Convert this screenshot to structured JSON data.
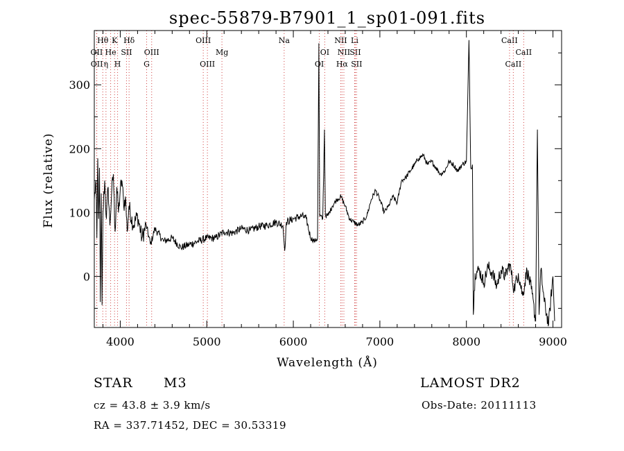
{
  "chart_data": {
    "type": "line",
    "title": "spec-55879-B7901_1_sp01-091.fits",
    "xlabel": "Wavelength (Å)",
    "ylabel": "Flux (relative)",
    "xlim": [
      3700,
      9100
    ],
    "ylim": [
      -80,
      385
    ],
    "xticks": [
      4000,
      5000,
      6000,
      7000,
      8000,
      9000
    ],
    "yticks": [
      0,
      100,
      200,
      300
    ],
    "grid": false,
    "series": [
      {
        "anchors": [
          [
            3700,
            120
          ],
          [
            3720,
            150
          ],
          [
            3730,
            60
          ],
          [
            3740,
            185
          ],
          [
            3750,
            90
          ],
          [
            3760,
            170
          ],
          [
            3770,
            -40
          ],
          [
            3780,
            130
          ],
          [
            3790,
            -45
          ],
          [
            3800,
            100
          ],
          [
            3820,
            150
          ],
          [
            3840,
            90
          ],
          [
            3860,
            140
          ],
          [
            3880,
            80
          ],
          [
            3900,
            130
          ],
          [
            3920,
            160
          ],
          [
            3940,
            70
          ],
          [
            3960,
            140
          ],
          [
            3980,
            100
          ],
          [
            4000,
            135
          ],
          [
            4020,
            150
          ],
          [
            4040,
            110
          ],
          [
            4060,
            125
          ],
          [
            4080,
            70
          ],
          [
            4100,
            110
          ],
          [
            4150,
            80
          ],
          [
            4200,
            95
          ],
          [
            4250,
            60
          ],
          [
            4300,
            80
          ],
          [
            4350,
            50
          ],
          [
            4400,
            75
          ],
          [
            4500,
            55
          ],
          [
            4600,
            60
          ],
          [
            4700,
            45
          ],
          [
            4800,
            50
          ],
          [
            4900,
            55
          ],
          [
            5000,
            60
          ],
          [
            5100,
            60
          ],
          [
            5200,
            70
          ],
          [
            5300,
            68
          ],
          [
            5400,
            75
          ],
          [
            5500,
            72
          ],
          [
            5600,
            78
          ],
          [
            5700,
            80
          ],
          [
            5800,
            85
          ],
          [
            5880,
            80
          ],
          [
            5900,
            40
          ],
          [
            5920,
            85
          ],
          [
            6000,
            90
          ],
          [
            6100,
            95
          ],
          [
            6150,
            90
          ],
          [
            6200,
            60
          ],
          [
            6250,
            55
          ],
          [
            6280,
            60
          ],
          [
            6295,
            365
          ],
          [
            6305,
            95
          ],
          [
            6340,
            90
          ],
          [
            6360,
            230
          ],
          [
            6370,
            95
          ],
          [
            6400,
            95
          ],
          [
            6450,
            110
          ],
          [
            6500,
            120
          ],
          [
            6550,
            125
          ],
          [
            6600,
            110
          ],
          [
            6650,
            90
          ],
          [
            6700,
            85
          ],
          [
            6750,
            80
          ],
          [
            6800,
            85
          ],
          [
            6850,
            95
          ],
          [
            6900,
            120
          ],
          [
            6950,
            135
          ],
          [
            7000,
            120
          ],
          [
            7050,
            100
          ],
          [
            7100,
            110
          ],
          [
            7150,
            125
          ],
          [
            7200,
            115
          ],
          [
            7250,
            150
          ],
          [
            7300,
            155
          ],
          [
            7350,
            165
          ],
          [
            7400,
            175
          ],
          [
            7450,
            185
          ],
          [
            7500,
            190
          ],
          [
            7550,
            175
          ],
          [
            7600,
            180
          ],
          [
            7650,
            170
          ],
          [
            7700,
            160
          ],
          [
            7750,
            165
          ],
          [
            7800,
            180
          ],
          [
            7850,
            175
          ],
          [
            7900,
            165
          ],
          [
            7950,
            175
          ],
          [
            8000,
            180
          ],
          [
            8030,
            370
          ],
          [
            8050,
            170
          ],
          [
            8070,
            175
          ],
          [
            8080,
            -60
          ],
          [
            8100,
            5
          ],
          [
            8150,
            10
          ],
          [
            8200,
            -10
          ],
          [
            8250,
            15
          ],
          [
            8300,
            5
          ],
          [
            8350,
            -15
          ],
          [
            8400,
            10
          ],
          [
            8450,
            0
          ],
          [
            8500,
            20
          ],
          [
            8550,
            -20
          ],
          [
            8600,
            5
          ],
          [
            8650,
            -30
          ],
          [
            8700,
            10
          ],
          [
            8750,
            -20
          ],
          [
            8800,
            -70
          ],
          [
            8820,
            230
          ],
          [
            8840,
            -60
          ],
          [
            8860,
            10
          ],
          [
            8900,
            -40
          ],
          [
            8950,
            -75
          ],
          [
            9000,
            0
          ],
          [
            9020,
            -70
          ]
        ]
      }
    ],
    "line_marks": [
      {
        "label": "Hθ",
        "wavelength": 3798,
        "row": 1
      },
      {
        "label": "OII",
        "wavelength": 3727,
        "row": 2
      },
      {
        "label": "OII",
        "wavelength": 3729,
        "row": 3
      },
      {
        "label": "K",
        "wavelength": 3934,
        "row": 1
      },
      {
        "label": "He",
        "wavelength": 3889,
        "row": 2
      },
      {
        "label": "η",
        "wavelength": 3835,
        "row": 3
      },
      {
        "label": "SII",
        "wavelength": 4072,
        "row": 2
      },
      {
        "label": "H",
        "wavelength": 3969,
        "row": 3
      },
      {
        "label": "Hδ",
        "wavelength": 4102,
        "row": 1
      },
      {
        "label": "OIII",
        "wavelength": 4363,
        "row": 2
      },
      {
        "label": "G",
        "wavelength": 4305,
        "row": 3
      },
      {
        "label": "OIII",
        "wavelength": 4959,
        "row": 1
      },
      {
        "label": "Mg",
        "wavelength": 5175,
        "row": 2
      },
      {
        "label": "OIII",
        "wavelength": 5007,
        "row": 3
      },
      {
        "label": "Na",
        "wavelength": 5894,
        "row": 1
      },
      {
        "label": "OI",
        "wavelength": 6363,
        "row": 2
      },
      {
        "label": "OI",
        "wavelength": 6300,
        "row": 3
      },
      {
        "label": "NII",
        "wavelength": 6548,
        "row": 1
      },
      {
        "label": "Li",
        "wavelength": 6708,
        "row": 1
      },
      {
        "label": "NII",
        "wavelength": 6584,
        "row": 2
      },
      {
        "label": "SII",
        "wavelength": 6716,
        "row": 2
      },
      {
        "label": "Hα",
        "wavelength": 6563,
        "row": 3
      },
      {
        "label": "SII",
        "wavelength": 6731,
        "row": 3
      },
      {
        "label": "CaII",
        "wavelength": 8498,
        "row": 1
      },
      {
        "label": "CaII",
        "wavelength": 8662,
        "row": 2
      },
      {
        "label": "CaII",
        "wavelength": 8542,
        "row": 3
      }
    ]
  },
  "info": {
    "object_class": "STAR",
    "subclass": "M3",
    "release": "LAMOST DR2",
    "redshift": "cz = 43.8 ± 3.9 km/s",
    "obs_date": "Obs-Date: 20111113",
    "coords": "RA = 337.71452, DEC =  30.53319"
  }
}
